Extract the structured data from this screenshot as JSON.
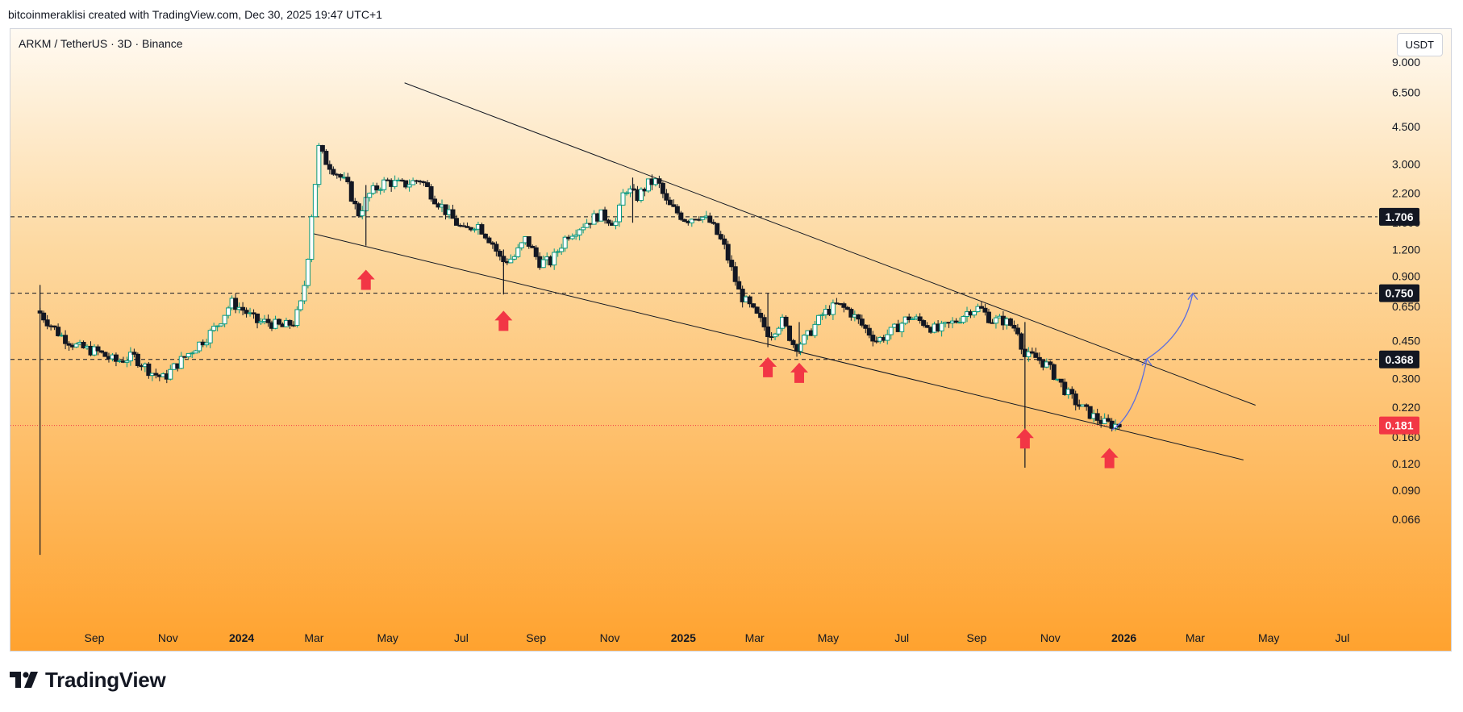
{
  "header": {
    "credit": "bitcoinmeraklisi created with TradingView.com, Dec 30, 2025 19:47 UTC+1"
  },
  "chart": {
    "symbol": "ARKM / TetherUS · 3D · Binance",
    "currency": "USDT"
  },
  "footer": {
    "brand": "TradingView"
  },
  "colors": {
    "bg_top": "#fffaf2",
    "bg_mid": "#fdd9a1",
    "bg_bottom": "#ffa22e",
    "up": "#089981",
    "down": "#131722",
    "arrow": "#f23645",
    "projection": "#5b6ee0",
    "last_price": "#f23645"
  },
  "icons": {
    "logo": "tradingview-logo-icon",
    "signal": "up-arrow-icon"
  },
  "chart_data": {
    "type": "candlestick",
    "timeframe": "3D",
    "y_scale": "log",
    "y_axis_ticks": [
      "9.000",
      "6.500",
      "4.500",
      "3.000",
      "2.200",
      "1.600",
      "1.200",
      "0.900",
      "0.650",
      "0.450",
      "0.300",
      "0.220",
      "0.160",
      "0.120",
      "0.090",
      "0.066"
    ],
    "x_axis_labels": [
      {
        "label": "Sep",
        "date": "2023-09-01",
        "year": false
      },
      {
        "label": "Nov",
        "date": "2023-11-01",
        "year": false
      },
      {
        "label": "2024",
        "date": "2024-01-01",
        "year": true
      },
      {
        "label": "Mar",
        "date": "2024-03-01",
        "year": false
      },
      {
        "label": "May",
        "date": "2024-05-01",
        "year": false
      },
      {
        "label": "Jul",
        "date": "2024-07-01",
        "year": false
      },
      {
        "label": "Sep",
        "date": "2024-09-01",
        "year": false
      },
      {
        "label": "Nov",
        "date": "2024-11-01",
        "year": false
      },
      {
        "label": "2025",
        "date": "2025-01-01",
        "year": true
      },
      {
        "label": "Mar",
        "date": "2025-03-01",
        "year": false
      },
      {
        "label": "May",
        "date": "2025-05-01",
        "year": false
      },
      {
        "label": "Jul",
        "date": "2025-07-01",
        "year": false
      },
      {
        "label": "Sep",
        "date": "2025-09-01",
        "year": false
      },
      {
        "label": "Nov",
        "date": "2025-11-01",
        "year": false
      },
      {
        "label": "2026",
        "date": "2026-01-01",
        "year": true
      },
      {
        "label": "Mar",
        "date": "2026-03-01",
        "year": false
      },
      {
        "label": "May",
        "date": "2026-05-01",
        "year": false
      },
      {
        "label": "Jul",
        "date": "2026-07-01",
        "year": false
      }
    ],
    "horizontal_levels": [
      {
        "value": 1.706,
        "label": "1.706"
      },
      {
        "value": 0.75,
        "label": "0.750"
      },
      {
        "value": 0.368,
        "label": "0.368"
      }
    ],
    "last_price": {
      "value": 0.181,
      "label": "0.181"
    },
    "price_path": [
      [
        "2023-07-18",
        0.62
      ],
      [
        "2023-07-25",
        0.56
      ],
      [
        "2023-08-05",
        0.48
      ],
      [
        "2023-08-20",
        0.42
      ],
      [
        "2023-09-05",
        0.4
      ],
      [
        "2023-09-20",
        0.36
      ],
      [
        "2023-10-05",
        0.38
      ],
      [
        "2023-10-20",
        0.32
      ],
      [
        "2023-10-30",
        0.3
      ],
      [
        "2023-11-10",
        0.35
      ],
      [
        "2023-11-25",
        0.42
      ],
      [
        "2023-12-05",
        0.47
      ],
      [
        "2023-12-15",
        0.55
      ],
      [
        "2023-12-25",
        0.68
      ],
      [
        "2024-01-05",
        0.62
      ],
      [
        "2024-01-15",
        0.55
      ],
      [
        "2024-01-25",
        0.55
      ],
      [
        "2024-02-05",
        0.52
      ],
      [
        "2024-02-15",
        0.55
      ],
      [
        "2024-02-22",
        0.7
      ],
      [
        "2024-02-27",
        1.2
      ],
      [
        "2024-03-01",
        1.9
      ],
      [
        "2024-03-04",
        2.6
      ],
      [
        "2024-03-07",
        3.8
      ],
      [
        "2024-03-10",
        3.2
      ],
      [
        "2024-03-20",
        2.8
      ],
      [
        "2024-03-30",
        2.4
      ],
      [
        "2024-04-08",
        1.75
      ],
      [
        "2024-04-18",
        2.2
      ],
      [
        "2024-05-01",
        2.5
      ],
      [
        "2024-05-15",
        2.4
      ],
      [
        "2024-05-30",
        2.55
      ],
      [
        "2024-06-10",
        2.1
      ],
      [
        "2024-06-22",
        1.75
      ],
      [
        "2024-07-05",
        1.45
      ],
      [
        "2024-07-15",
        1.6
      ],
      [
        "2024-07-28",
        1.3
      ],
      [
        "2024-08-05",
        1.05
      ],
      [
        "2024-08-15",
        1.1
      ],
      [
        "2024-08-25",
        1.35
      ],
      [
        "2024-09-05",
        1.05
      ],
      [
        "2024-09-15",
        1.05
      ],
      [
        "2024-09-28",
        1.4
      ],
      [
        "2024-10-10",
        1.55
      ],
      [
        "2024-10-25",
        1.75
      ],
      [
        "2024-11-08",
        1.6
      ],
      [
        "2024-11-15",
        2.35
      ],
      [
        "2024-11-25",
        2.1
      ],
      [
        "2024-12-05",
        2.45
      ],
      [
        "2024-12-12",
        2.5
      ],
      [
        "2024-12-20",
        1.95
      ],
      [
        "2025-01-05",
        1.65
      ],
      [
        "2025-01-15",
        1.75
      ],
      [
        "2025-01-25",
        1.6
      ],
      [
        "2025-02-05",
        1.25
      ],
      [
        "2025-02-18",
        0.75
      ],
      [
        "2025-03-01",
        0.62
      ],
      [
        "2025-03-08",
        0.55
      ],
      [
        "2025-03-15",
        0.48
      ],
      [
        "2025-03-25",
        0.56
      ],
      [
        "2025-04-05",
        0.42
      ],
      [
        "2025-04-15",
        0.47
      ],
      [
        "2025-04-28",
        0.6
      ],
      [
        "2025-05-10",
        0.66
      ],
      [
        "2025-05-20",
        0.62
      ],
      [
        "2025-06-01",
        0.52
      ],
      [
        "2025-06-12",
        0.45
      ],
      [
        "2025-06-25",
        0.5
      ],
      [
        "2025-07-08",
        0.58
      ],
      [
        "2025-07-20",
        0.55
      ],
      [
        "2025-08-01",
        0.5
      ],
      [
        "2025-08-15",
        0.55
      ],
      [
        "2025-08-28",
        0.63
      ],
      [
        "2025-09-05",
        0.64
      ],
      [
        "2025-09-15",
        0.56
      ],
      [
        "2025-09-25",
        0.56
      ],
      [
        "2025-10-08",
        0.5
      ],
      [
        "2025-10-11",
        0.38
      ],
      [
        "2025-10-20",
        0.38
      ],
      [
        "2025-10-30",
        0.35
      ],
      [
        "2025-11-08",
        0.3
      ],
      [
        "2025-11-18",
        0.25
      ],
      [
        "2025-11-28",
        0.22
      ],
      [
        "2025-12-08",
        0.2
      ],
      [
        "2025-12-18",
        0.185
      ],
      [
        "2025-12-30",
        0.181
      ]
    ],
    "wicks": [
      {
        "date": "2023-07-18",
        "low": 0.045,
        "high": 0.82
      },
      {
        "date": "2024-04-13",
        "low": 1.25,
        "high": 2.4
      },
      {
        "date": "2024-08-05",
        "low": 0.74,
        "high": 1.2
      },
      {
        "date": "2025-03-12",
        "low": 0.42,
        "high": 0.75
      },
      {
        "date": "2025-04-07",
        "low": 0.39,
        "high": 0.55
      },
      {
        "date": "2025-10-11",
        "low": 0.115,
        "high": 0.55
      },
      {
        "date": "2024-11-20",
        "low": 1.6,
        "high": 2.6
      }
    ],
    "trendlines": [
      {
        "name": "upper",
        "from": [
          "2024-05-15",
          7.2
        ],
        "to": [
          "2026-04-20",
          0.225
        ]
      },
      {
        "name": "lower",
        "from": [
          "2024-03-01",
          1.42
        ],
        "to": [
          "2026-04-10",
          0.125
        ]
      }
    ],
    "arrows": [
      {
        "date": "2024-04-13",
        "value": 0.87
      },
      {
        "date": "2024-08-05",
        "value": 0.56
      },
      {
        "date": "2025-03-12",
        "value": 0.34
      },
      {
        "date": "2025-04-07",
        "value": 0.32
      },
      {
        "date": "2025-10-11",
        "value": 0.158
      },
      {
        "date": "2025-12-20",
        "value": 0.128
      }
    ],
    "projection": [
      [
        "2025-12-22",
        0.172
      ],
      [
        "2026-01-20",
        0.37
      ],
      [
        "2026-02-27",
        0.75
      ]
    ]
  }
}
